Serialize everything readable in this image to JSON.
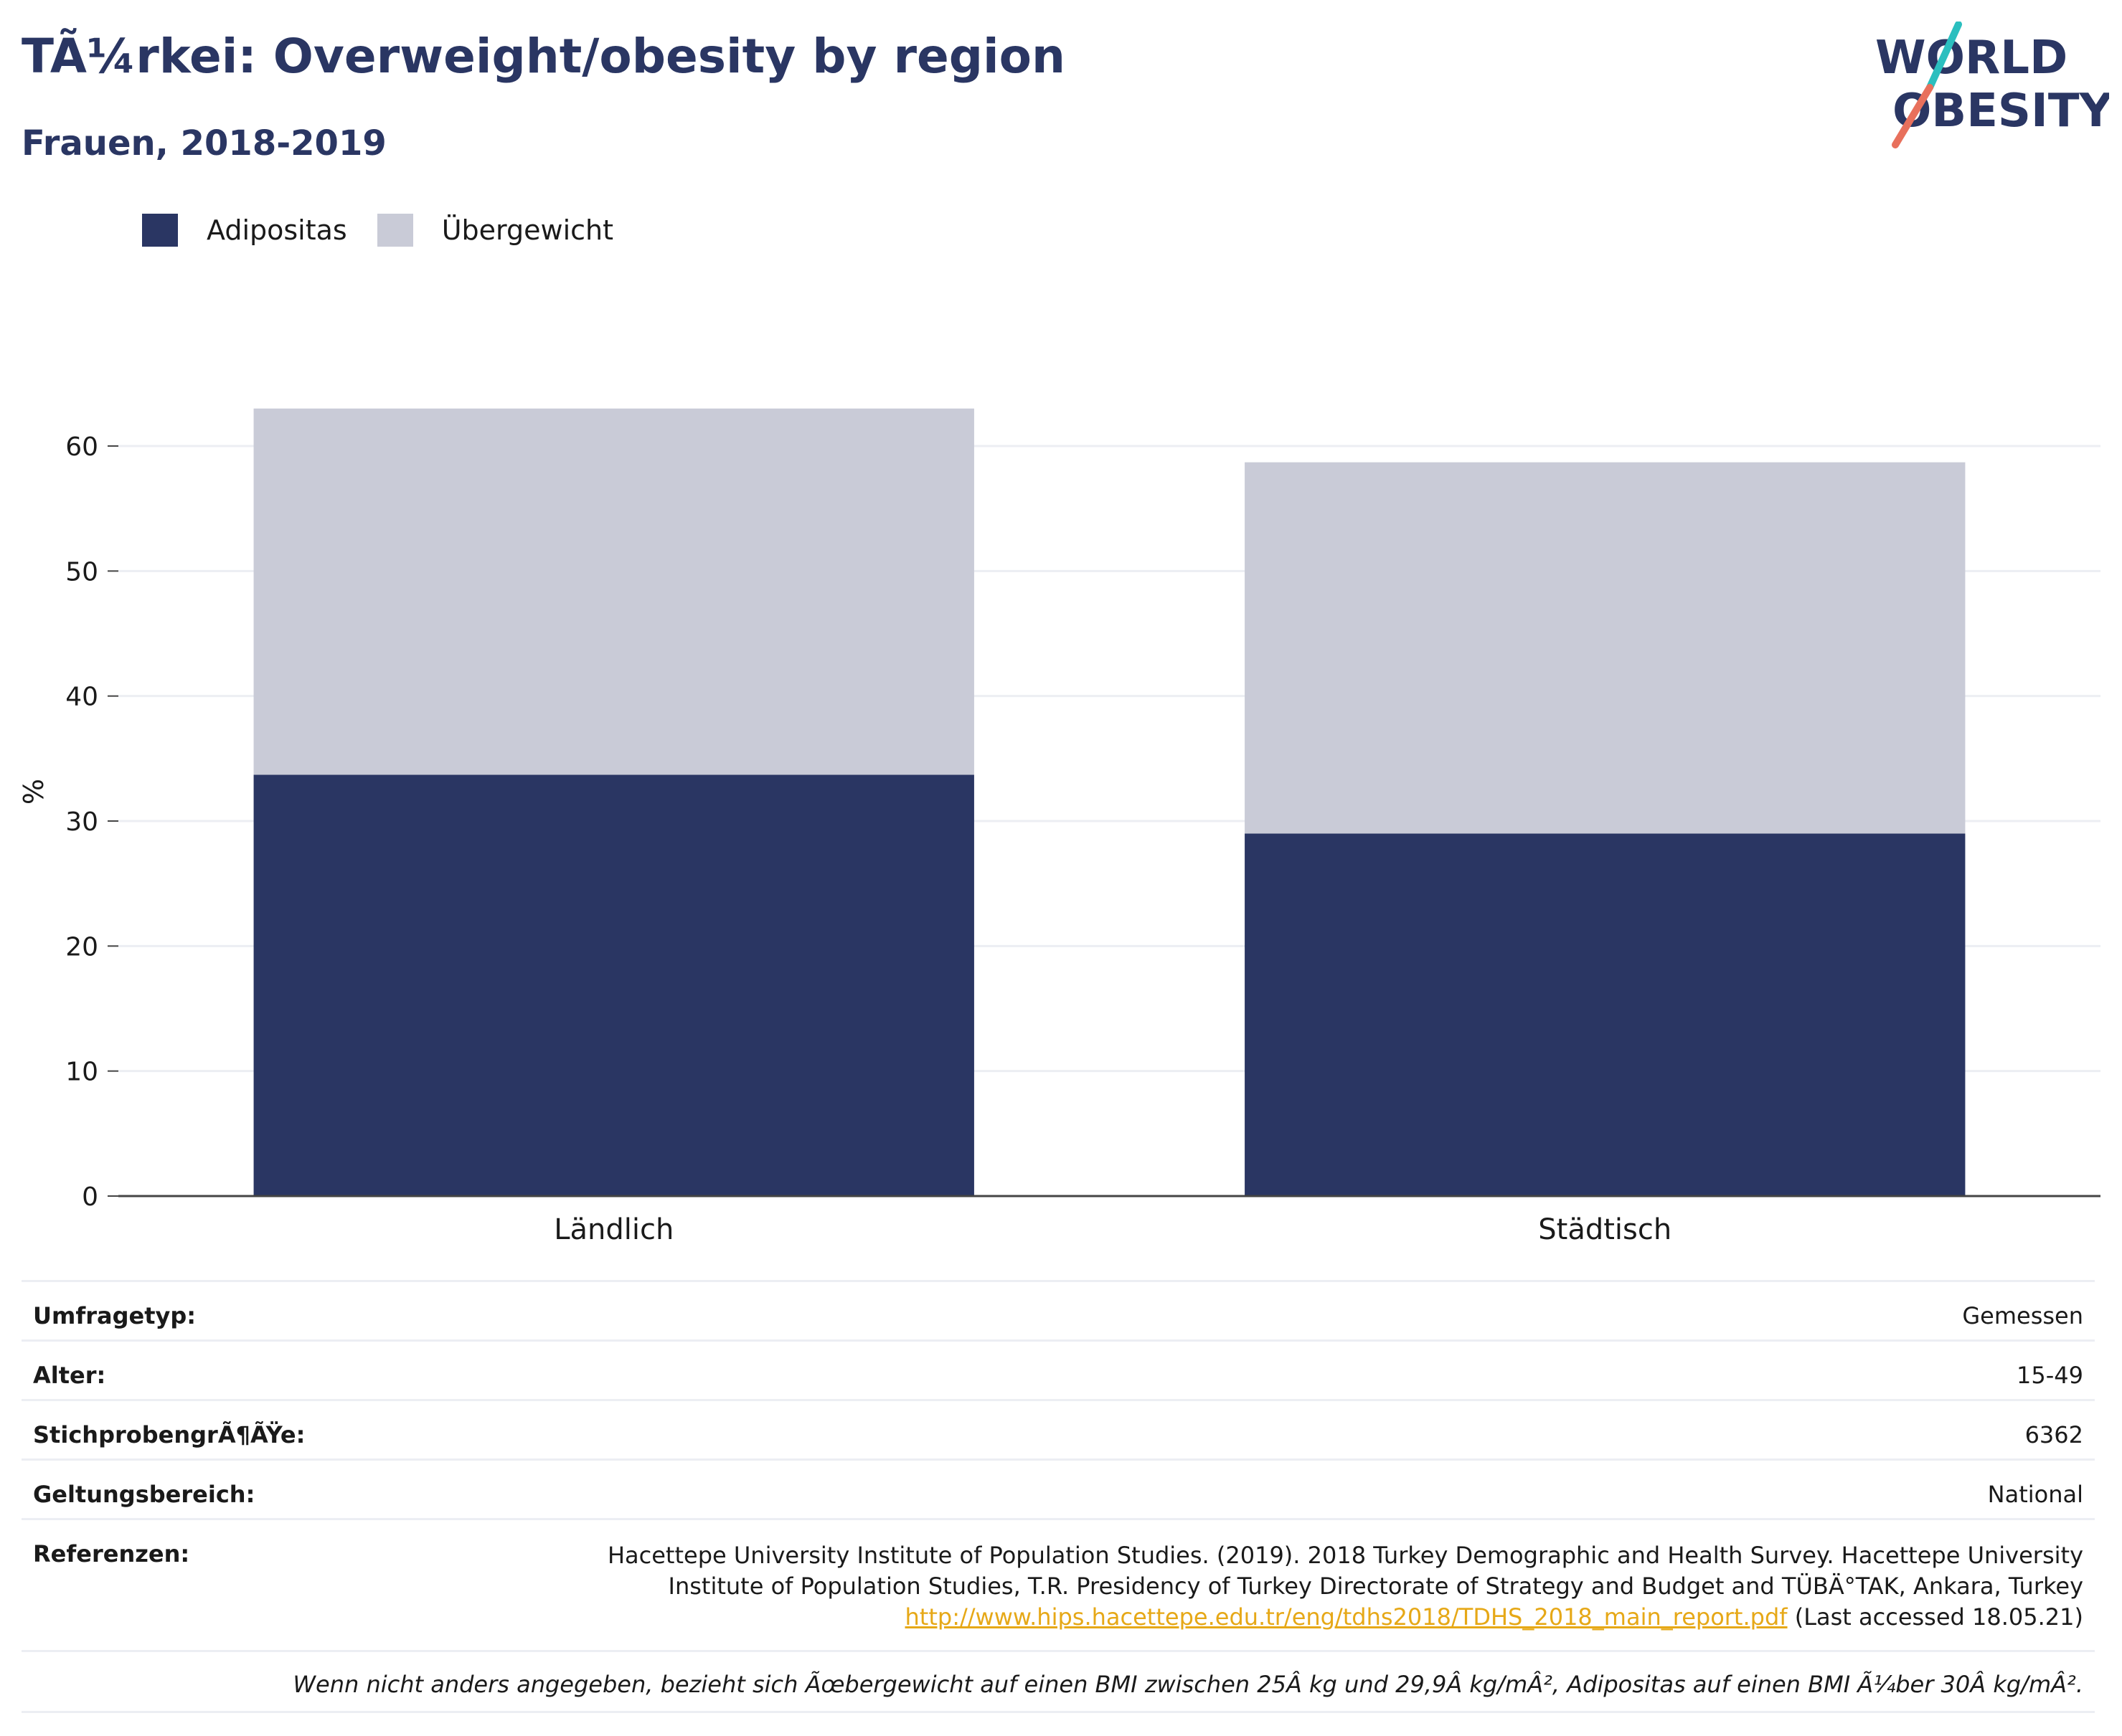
{
  "header": {
    "title": "TÃ¼rkei: Overweight/obesity by region",
    "subtitle": "Frauen, 2018-2019"
  },
  "logo": {
    "line1": "WORLD",
    "line2": "OBESITY"
  },
  "colors": {
    "obesity": "#2a3663",
    "overweight": "#c9cbd7",
    "brand_teal": "#2bbfbf",
    "brand_coral": "#e8705c",
    "link": "#e6a817"
  },
  "chart_data": {
    "type": "bar",
    "stacked": true,
    "categories": [
      "Ländlich",
      "Städtisch"
    ],
    "series": [
      {
        "name": "Adipositas",
        "values": [
          33.7,
          29.0
        ]
      },
      {
        "name": "Übergewicht",
        "values": [
          29.3,
          29.7
        ]
      }
    ],
    "xlabel": "",
    "ylabel": "%",
    "ylim": [
      0,
      67
    ],
    "yticks": [
      0,
      10,
      20,
      30,
      40,
      50,
      60
    ],
    "grid": true,
    "legend": "top-left"
  },
  "meta": {
    "survey_type": {
      "label": "Umfragetyp:",
      "value": "Gemessen"
    },
    "age": {
      "label": "Alter:",
      "value": "15-49"
    },
    "sample_size": {
      "label": "StichprobengrÃ¶ÃŸe:",
      "value": "6362"
    },
    "scope": {
      "label": "Geltungsbereich:",
      "value": "National"
    },
    "references": {
      "label": "Referenzen:",
      "line1": "Hacettepe University Institute of Population Studies. (2019). 2018 Turkey Demographic and Health Survey. Hacettepe University",
      "line2": "Institute of Population Studies, T.R. Presidency of Turkey Directorate of Strategy and Budget and TÜBÄ°TAK, Ankara, Turkey",
      "link": "http://www.hips.hacettepe.edu.tr/eng/tdhs2018/TDHS_2018_main_report.pdf",
      "accessed": " (Last accessed 18.05.21)"
    },
    "note": "Wenn nicht anders angegeben, bezieht sich Ãœbergewicht auf einen BMI zwischen 25Â kg und 29,9Â kg/mÂ², Adipositas auf einen BMI Ã¼ber 30Â kg/mÂ²."
  }
}
